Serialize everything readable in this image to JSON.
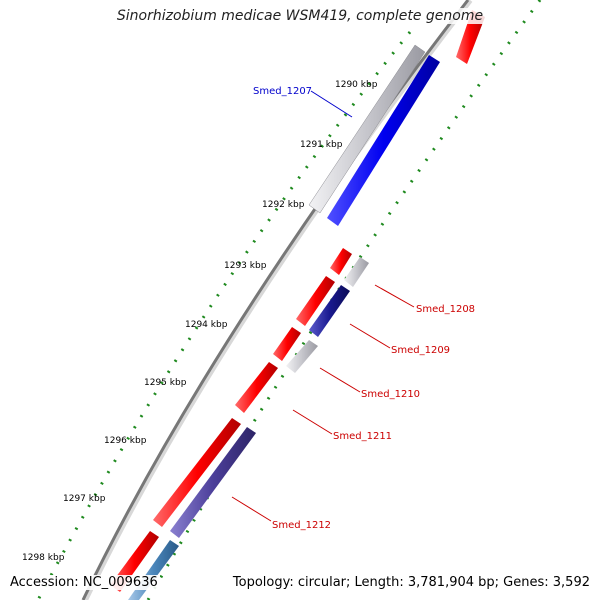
{
  "title": "Sinorhizobium medicae WSM419, complete genome",
  "accession": "Accession: NC_009636",
  "topology": "Topology: circular; Length: 3,781,904 bp; Genes: 3,592",
  "ticks": [
    "1290 kbp",
    "1291 kbp",
    "1292 kbp",
    "1293 kbp",
    "1294 kbp",
    "1295 kbp",
    "1296 kbp",
    "1297 kbp",
    "1298 kbp"
  ],
  "genes": [
    {
      "label": "Smed_1207",
      "color": "#0000cc"
    },
    {
      "label": "Smed_1208",
      "color": "#cc0000"
    },
    {
      "label": "Smed_1209",
      "color": "#cc0000"
    },
    {
      "label": "Smed_1210",
      "color": "#cc0000"
    },
    {
      "label": "Smed_1211",
      "color": "#cc0000"
    },
    {
      "label": "Smed_1212",
      "color": "#cc0000"
    }
  ],
  "colors": {
    "forward_gene": "#ff1a1a",
    "reverse_gene": "#0000e6",
    "pseudo_gene": "#c8c8cc",
    "tick_dots": "#1f8a1f",
    "backbone": "#777777"
  }
}
